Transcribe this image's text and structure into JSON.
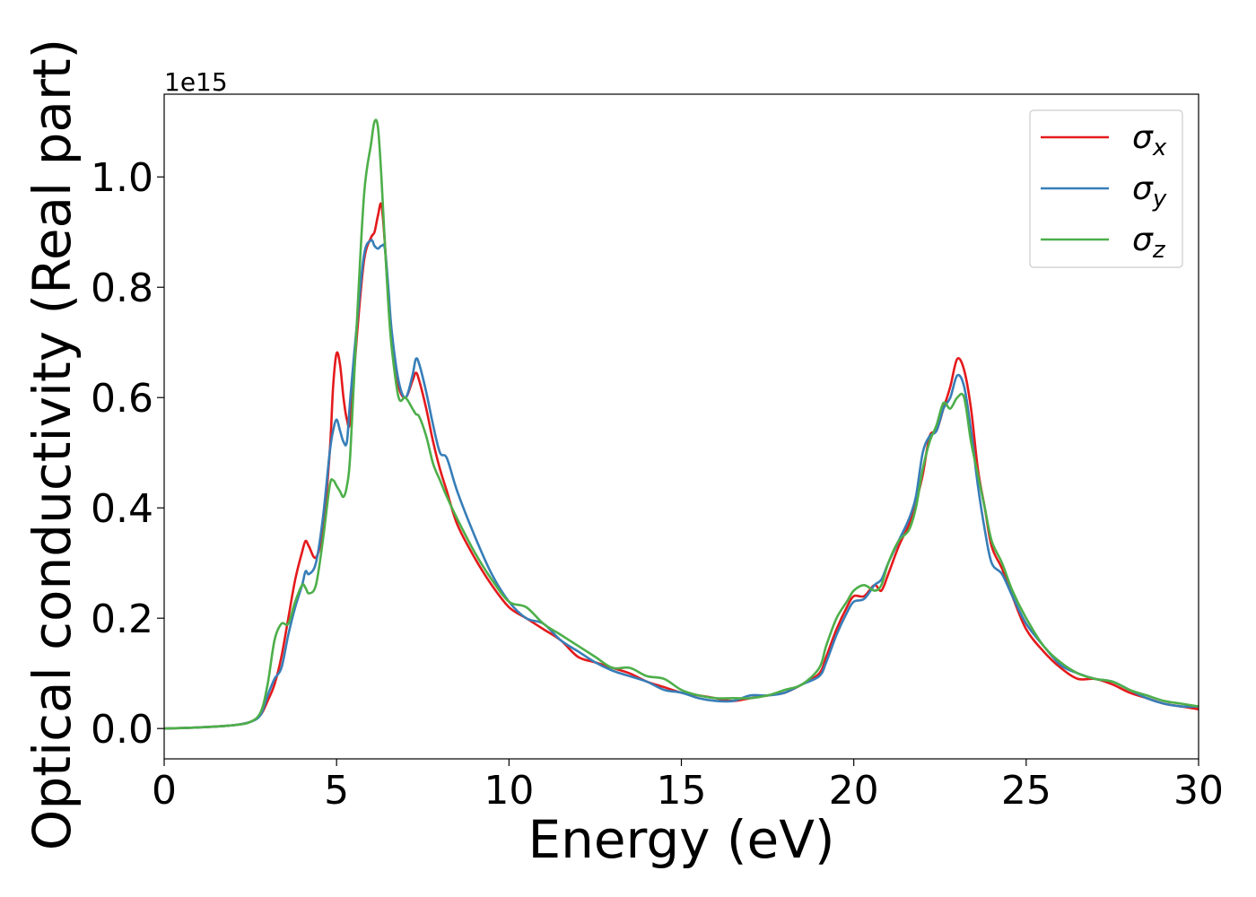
{
  "chart_data": {
    "type": "line",
    "title": "",
    "xlabel": "Energy (eV)",
    "ylabel": "Optical conductivity (Real part)",
    "offset_text": "1e15",
    "xlim": [
      0,
      30
    ],
    "ylim": [
      -0.055,
      1.15
    ],
    "x_ticks": [
      0,
      5,
      10,
      15,
      20,
      25,
      30
    ],
    "x_tick_labels": [
      "0",
      "5",
      "10",
      "15",
      "20",
      "25",
      "30"
    ],
    "y_ticks": [
      0.0,
      0.2,
      0.4,
      0.6,
      0.8,
      1.0
    ],
    "y_tick_labels": [
      "0.0",
      "0.2",
      "0.4",
      "0.6",
      "0.8",
      "1.0"
    ],
    "grid": false,
    "legend_position": "top-right",
    "series": [
      {
        "name": "σx",
        "label_main": "σ",
        "label_sub": "x",
        "color": "#e41a1c",
        "x": [
          0,
          1,
          2,
          2.5,
          2.8,
          3.0,
          3.2,
          3.4,
          3.6,
          3.8,
          4.0,
          4.1,
          4.2,
          4.4,
          4.6,
          4.8,
          4.9,
          5.0,
          5.1,
          5.2,
          5.3,
          5.4,
          5.6,
          5.8,
          6.0,
          6.1,
          6.2,
          6.3,
          6.4,
          6.5,
          6.6,
          6.8,
          7.0,
          7.2,
          7.3,
          7.4,
          7.6,
          7.8,
          8.0,
          8.2,
          8.5,
          9.0,
          9.5,
          10,
          10.5,
          11,
          11.5,
          12,
          12.5,
          13,
          13.5,
          14,
          14.5,
          15,
          15.5,
          16,
          16.5,
          17,
          17.5,
          18,
          18.5,
          19,
          19.2,
          19.5,
          19.8,
          20,
          20.3,
          20.6,
          20.8,
          21,
          21.3,
          21.6,
          21.8,
          22,
          22.2,
          22.4,
          22.6,
          22.8,
          23,
          23.2,
          23.4,
          23.6,
          23.8,
          24,
          24.3,
          24.6,
          25,
          25.5,
          26,
          26.5,
          27,
          27.5,
          28,
          28.5,
          29,
          29.5,
          30
        ],
        "y": [
          0,
          0.002,
          0.006,
          0.012,
          0.025,
          0.05,
          0.08,
          0.13,
          0.2,
          0.27,
          0.32,
          0.34,
          0.33,
          0.31,
          0.36,
          0.5,
          0.62,
          0.68,
          0.66,
          0.6,
          0.56,
          0.56,
          0.72,
          0.85,
          0.89,
          0.9,
          0.93,
          0.95,
          0.88,
          0.78,
          0.7,
          0.62,
          0.6,
          0.63,
          0.645,
          0.63,
          0.58,
          0.52,
          0.47,
          0.43,
          0.37,
          0.31,
          0.26,
          0.22,
          0.2,
          0.18,
          0.16,
          0.13,
          0.12,
          0.11,
          0.1,
          0.085,
          0.075,
          0.065,
          0.06,
          0.055,
          0.05,
          0.055,
          0.06,
          0.065,
          0.08,
          0.1,
          0.13,
          0.18,
          0.22,
          0.24,
          0.24,
          0.26,
          0.25,
          0.28,
          0.33,
          0.37,
          0.41,
          0.46,
          0.53,
          0.54,
          0.58,
          0.62,
          0.67,
          0.65,
          0.58,
          0.47,
          0.4,
          0.33,
          0.29,
          0.24,
          0.18,
          0.14,
          0.11,
          0.09,
          0.09,
          0.08,
          0.065,
          0.055,
          0.045,
          0.04,
          0.035
        ]
      },
      {
        "name": "σy",
        "label_main": "σ",
        "label_sub": "y",
        "color": "#377eb8",
        "x": [
          0,
          1,
          2,
          2.5,
          2.8,
          3.0,
          3.2,
          3.4,
          3.6,
          3.8,
          4.0,
          4.1,
          4.2,
          4.4,
          4.6,
          4.8,
          4.9,
          5.0,
          5.1,
          5.2,
          5.3,
          5.4,
          5.6,
          5.8,
          6.0,
          6.1,
          6.2,
          6.3,
          6.4,
          6.5,
          6.6,
          6.8,
          7.0,
          7.2,
          7.3,
          7.4,
          7.6,
          7.8,
          8.0,
          8.2,
          8.5,
          9.0,
          9.5,
          10,
          10.5,
          11,
          11.5,
          12,
          12.5,
          13,
          13.5,
          14,
          14.5,
          15,
          15.5,
          16,
          16.5,
          17,
          17.5,
          18,
          18.5,
          19,
          19.2,
          19.5,
          19.8,
          20,
          20.3,
          20.6,
          20.8,
          21,
          21.3,
          21.6,
          21.8,
          22,
          22.2,
          22.4,
          22.6,
          22.8,
          23,
          23.2,
          23.4,
          23.6,
          23.8,
          24,
          24.3,
          24.6,
          25,
          25.5,
          26,
          26.5,
          27,
          27.5,
          28,
          28.5,
          29,
          29.5,
          30
        ],
        "y": [
          0,
          0.002,
          0.006,
          0.012,
          0.025,
          0.06,
          0.09,
          0.11,
          0.17,
          0.22,
          0.26,
          0.285,
          0.28,
          0.3,
          0.38,
          0.5,
          0.54,
          0.56,
          0.54,
          0.52,
          0.52,
          0.6,
          0.74,
          0.86,
          0.885,
          0.875,
          0.87,
          0.875,
          0.87,
          0.8,
          0.72,
          0.63,
          0.6,
          0.64,
          0.67,
          0.66,
          0.61,
          0.55,
          0.5,
          0.49,
          0.43,
          0.35,
          0.28,
          0.23,
          0.2,
          0.19,
          0.16,
          0.14,
          0.12,
          0.105,
          0.095,
          0.085,
          0.07,
          0.065,
          0.055,
          0.05,
          0.05,
          0.06,
          0.06,
          0.065,
          0.08,
          0.095,
          0.12,
          0.17,
          0.21,
          0.23,
          0.235,
          0.26,
          0.27,
          0.3,
          0.34,
          0.38,
          0.42,
          0.5,
          0.53,
          0.54,
          0.58,
          0.6,
          0.64,
          0.62,
          0.54,
          0.44,
          0.36,
          0.3,
          0.28,
          0.24,
          0.19,
          0.15,
          0.115,
          0.1,
          0.09,
          0.085,
          0.07,
          0.055,
          0.045,
          0.04,
          0.04
        ]
      },
      {
        "name": "σz",
        "label_main": "σ",
        "label_sub": "z",
        "color": "#4daf4a",
        "x": [
          0,
          1,
          2,
          2.5,
          2.8,
          3.0,
          3.2,
          3.4,
          3.6,
          3.8,
          4.0,
          4.1,
          4.2,
          4.4,
          4.6,
          4.8,
          4.9,
          5.0,
          5.1,
          5.2,
          5.3,
          5.4,
          5.6,
          5.8,
          6.0,
          6.1,
          6.2,
          6.3,
          6.4,
          6.5,
          6.6,
          6.8,
          7.0,
          7.2,
          7.3,
          7.4,
          7.6,
          7.8,
          8.0,
          8.2,
          8.5,
          9.0,
          9.5,
          10,
          10.5,
          11,
          11.5,
          12,
          12.5,
          13,
          13.5,
          14,
          14.5,
          15,
          15.5,
          16,
          16.5,
          17,
          17.5,
          18,
          18.5,
          19,
          19.2,
          19.5,
          19.8,
          20,
          20.3,
          20.6,
          20.8,
          21,
          21.3,
          21.6,
          21.8,
          22,
          22.2,
          22.4,
          22.6,
          22.8,
          23,
          23.2,
          23.4,
          23.6,
          23.8,
          24,
          24.3,
          24.6,
          25,
          25.5,
          26,
          26.5,
          27,
          27.5,
          28,
          28.5,
          29,
          29.5,
          30
        ],
        "y": [
          0,
          0.002,
          0.006,
          0.012,
          0.03,
          0.08,
          0.16,
          0.19,
          0.19,
          0.23,
          0.26,
          0.255,
          0.245,
          0.26,
          0.34,
          0.44,
          0.45,
          0.44,
          0.43,
          0.42,
          0.44,
          0.5,
          0.75,
          0.97,
          1.06,
          1.1,
          1.09,
          1.0,
          0.88,
          0.77,
          0.69,
          0.6,
          0.6,
          0.58,
          0.57,
          0.565,
          0.53,
          0.48,
          0.45,
          0.42,
          0.38,
          0.32,
          0.27,
          0.23,
          0.22,
          0.19,
          0.17,
          0.15,
          0.13,
          0.11,
          0.11,
          0.095,
          0.09,
          0.07,
          0.06,
          0.055,
          0.055,
          0.055,
          0.06,
          0.07,
          0.08,
          0.11,
          0.15,
          0.2,
          0.23,
          0.25,
          0.26,
          0.25,
          0.26,
          0.3,
          0.34,
          0.36,
          0.4,
          0.47,
          0.52,
          0.55,
          0.59,
          0.58,
          0.6,
          0.6,
          0.52,
          0.46,
          0.4,
          0.34,
          0.3,
          0.25,
          0.2,
          0.15,
          0.12,
          0.1,
          0.09,
          0.085,
          0.07,
          0.06,
          0.05,
          0.045,
          0.04
        ]
      }
    ]
  }
}
